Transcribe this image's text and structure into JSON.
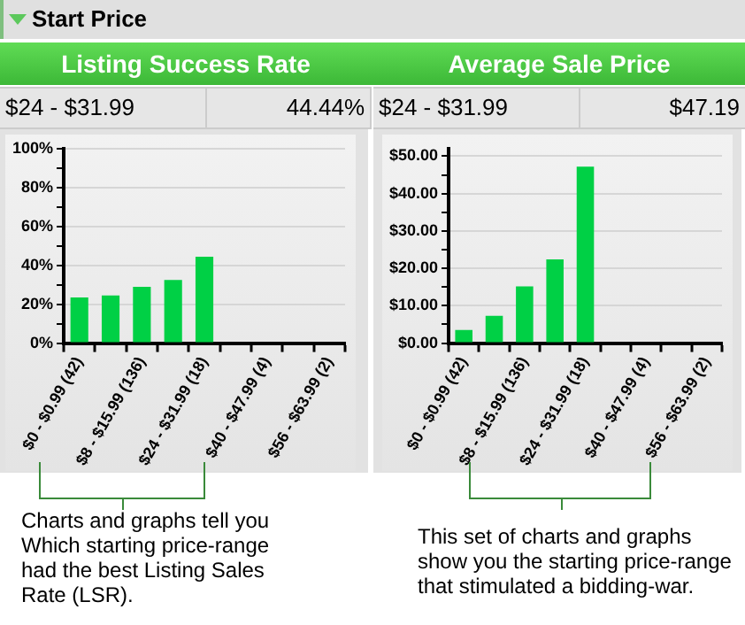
{
  "chart_data": [
    {
      "type": "bar",
      "title": "Listing Success Rate",
      "categories": [
        "$0 - $0.99 (42)",
        null,
        "$8 - $15.99 (136)",
        null,
        "$24 - $31.99 (18)",
        null,
        "$40 - $47.99 (4)",
        null,
        "$56 - $63.99 (2)"
      ],
      "values": [
        23.5,
        24.5,
        29,
        32.5,
        44.44,
        null,
        null,
        null,
        null
      ],
      "color": "#00d045",
      "ylim": [
        0,
        100
      ],
      "yticks": [
        {
          "value": 0,
          "label": "0%"
        },
        {
          "value": 10,
          "label": null
        },
        {
          "value": 20,
          "label": "20%"
        },
        {
          "value": 30,
          "label": null
        },
        {
          "value": 40,
          "label": "40%"
        },
        {
          "value": 50,
          "label": null
        },
        {
          "value": 60,
          "label": "60%"
        },
        {
          "value": 70,
          "label": null
        },
        {
          "value": 80,
          "label": "80%"
        },
        {
          "value": 90,
          "label": null
        },
        {
          "value": 100,
          "label": "100%"
        }
      ],
      "grid": "y",
      "legend": false,
      "annotations": [
        "Start Price",
        "$24 - $31.99",
        "44.44%",
        "Charts and graphs tell you Which starting price-range had the best Listing Sales Rate (LSR)."
      ]
    },
    {
      "type": "bar",
      "title": "Average Sale Price",
      "categories": [
        "$0 - $0.99 (42)",
        null,
        "$8 - $15.99 (136)",
        null,
        "$24 - $31.99 (18)",
        null,
        "$40 - $47.99 (4)",
        null,
        "$56 - $63.99 (2)"
      ],
      "values": [
        3.5,
        7.3,
        15.2,
        22.4,
        47.19,
        null,
        null,
        null,
        null
      ],
      "color": "#00d045",
      "ylim": [
        0,
        52
      ],
      "yticks": [
        {
          "value": 0,
          "label": "$0.00"
        },
        {
          "value": 5,
          "label": null
        },
        {
          "value": 10,
          "label": "$10.00"
        },
        {
          "value": 15,
          "label": null
        },
        {
          "value": 20,
          "label": "$20.00"
        },
        {
          "value": 25,
          "label": null
        },
        {
          "value": 30,
          "label": "$30.00"
        },
        {
          "value": 35,
          "label": null
        },
        {
          "value": 40,
          "label": "$40.00"
        },
        {
          "value": 45,
          "label": null
        },
        {
          "value": 50,
          "label": "$50.00"
        }
      ],
      "grid": "y",
      "legend": false,
      "annotations": [
        "$24 - $31.99",
        "$47.19",
        "This set of charts and graphs show you the starting price-range that stimulated a bidding-war."
      ]
    }
  ]
}
